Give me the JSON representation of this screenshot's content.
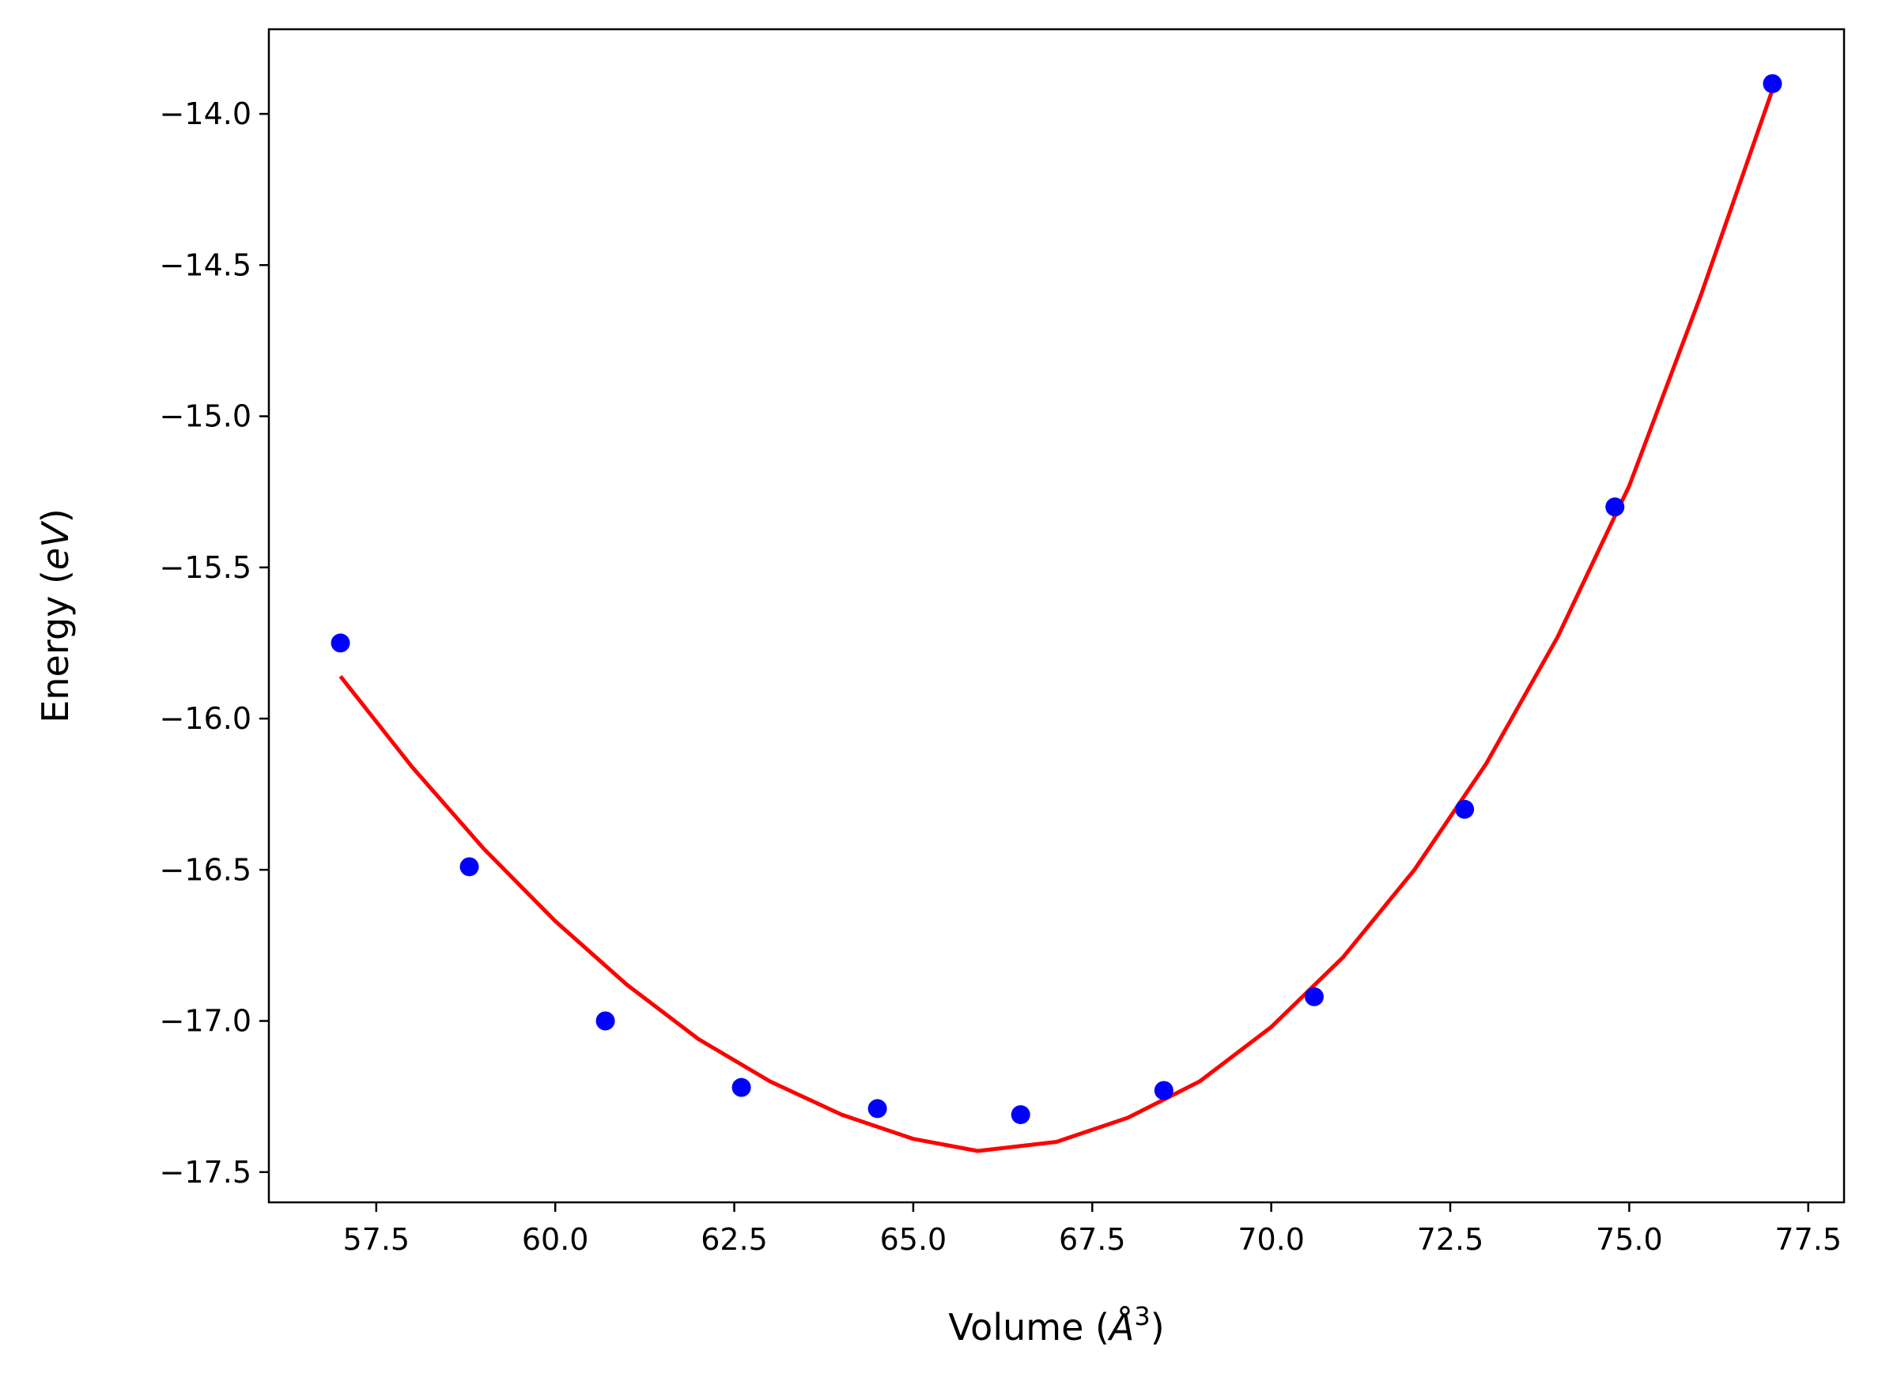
{
  "chart_data": {
    "type": "scatter",
    "xlabel": "Volume (Å³)",
    "xlabel_parts": {
      "prefix": "Volume (",
      "var": "Å",
      "sup": "3",
      "suffix": ")"
    },
    "ylabel": "Energy (eV)",
    "ylabel_parts": {
      "prefix": "Energy (",
      "var": "eV",
      "suffix": ")"
    },
    "xlim": [
      56.0,
      78.0
    ],
    "ylim": [
      -17.6,
      -13.72
    ],
    "xticks": [
      57.5,
      60.0,
      62.5,
      65.0,
      67.5,
      70.0,
      72.5,
      75.0,
      77.5
    ],
    "xtick_labels": [
      "57.5",
      "60.0",
      "62.5",
      "65.0",
      "67.5",
      "70.0",
      "72.5",
      "75.0",
      "77.5"
    ],
    "yticks": [
      -14.0,
      -14.5,
      -15.0,
      -15.5,
      -16.0,
      -16.5,
      -17.0,
      -17.5
    ],
    "ytick_labels": [
      "−14.0",
      "−14.5",
      "−15.0",
      "−15.5",
      "−16.0",
      "−16.5",
      "−17.0",
      "−17.5"
    ],
    "grid": false,
    "series": [
      {
        "kind": "scatter",
        "color": "#0000ff",
        "x": [
          57.0,
          58.8,
          60.7,
          62.6,
          64.5,
          66.5,
          68.5,
          70.6,
          72.7,
          74.8,
          77.0
        ],
        "y": [
          -15.75,
          -16.49,
          -17.0,
          -17.22,
          -17.29,
          -17.31,
          -17.23,
          -16.92,
          -16.3,
          -15.3,
          -13.9
        ]
      },
      {
        "kind": "line",
        "color": "#ff0000",
        "x": [
          57.0,
          58.0,
          59.0,
          60.0,
          61.0,
          62.0,
          63.0,
          64.0,
          65.0,
          65.9,
          67.0,
          68.0,
          69.0,
          70.0,
          71.0,
          72.0,
          73.0,
          74.0,
          75.0,
          76.0,
          77.0
        ],
        "y": [
          -15.86,
          -16.16,
          -16.43,
          -16.67,
          -16.88,
          -17.06,
          -17.2,
          -17.31,
          -17.39,
          -17.43,
          -17.4,
          -17.32,
          -17.2,
          -17.02,
          -16.79,
          -16.5,
          -16.15,
          -15.73,
          -15.23,
          -14.6,
          -13.92
        ]
      }
    ]
  }
}
